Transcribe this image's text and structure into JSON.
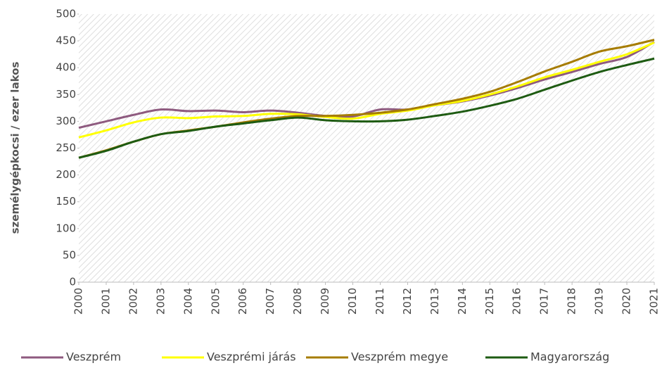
{
  "chart_data": {
    "type": "line",
    "ylabel": "személygépkocsi / ezer lakos",
    "x": [
      2000,
      2001,
      2002,
      2003,
      2004,
      2005,
      2006,
      2007,
      2008,
      2009,
      2010,
      2011,
      2012,
      2013,
      2014,
      2015,
      2016,
      2017,
      2018,
      2019,
      2020,
      2021
    ],
    "xlim": [
      2000,
      2021
    ],
    "series": [
      {
        "name": "Veszprém",
        "color": "#8e5a7f",
        "values": [
          288,
          300,
          312,
          322,
          319,
          320,
          317,
          320,
          316,
          310,
          309,
          322,
          322,
          330,
          337,
          348,
          362,
          378,
          392,
          407,
          420,
          448
        ]
      },
      {
        "name": "Veszprémi járás",
        "color": "#ffff00",
        "values": [
          270,
          283,
          298,
          307,
          306,
          309,
          310,
          314,
          313,
          308,
          305,
          314,
          320,
          330,
          338,
          350,
          365,
          382,
          396,
          411,
          425,
          447
        ]
      },
      {
        "name": "Veszprém megye",
        "color": "#a67c00",
        "values": [
          232,
          246,
          262,
          276,
          283,
          290,
          298,
          305,
          310,
          310,
          312,
          316,
          322,
          332,
          342,
          355,
          373,
          393,
          411,
          430,
          440,
          452
        ]
      },
      {
        "name": "Magyarország",
        "color": "#1e5b12",
        "values": [
          232,
          245,
          262,
          276,
          282,
          290,
          296,
          302,
          307,
          302,
          300,
          300,
          303,
          310,
          318,
          329,
          342,
          359,
          376,
          392,
          405,
          417
        ]
      }
    ],
    "ylim": [
      0,
      500
    ],
    "yticks": [
      0,
      50,
      100,
      150,
      200,
      250,
      300,
      350,
      400,
      450,
      500
    ],
    "legend": "bottom"
  }
}
